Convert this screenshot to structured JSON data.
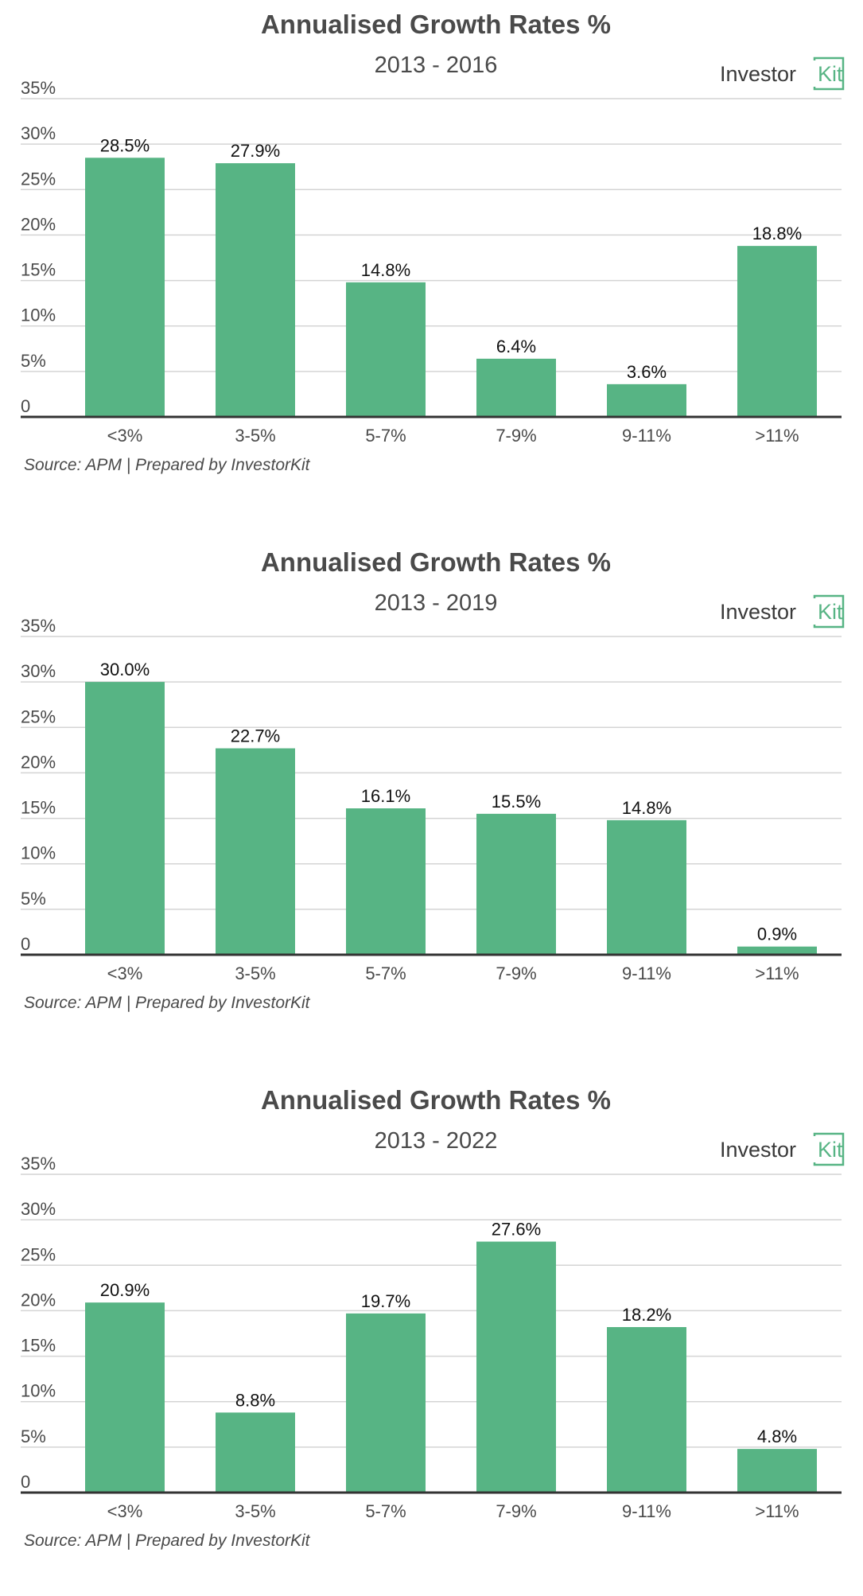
{
  "colors": {
    "bar": "#57b484",
    "logo_accent": "#57b484"
  },
  "logo": {
    "word": "Investor",
    "accent": "Kit"
  },
  "y_tick_labels": [
    "0",
    "5%",
    "10%",
    "15%",
    "20%",
    "25%",
    "30%",
    "35%"
  ],
  "chart_data": [
    {
      "type": "bar",
      "title": "Annualised Growth Rates %",
      "subtitle": "2013 - 2016",
      "source": "Source: APM | Prepared by InvestorKit",
      "categories": [
        "<3%",
        "3-5%",
        "5-7%",
        "7-9%",
        "9-11%",
        ">11%"
      ],
      "values": [
        28.5,
        27.9,
        14.8,
        6.4,
        3.6,
        18.8
      ],
      "labels": [
        "28.5%",
        "27.9%",
        "14.8%",
        "6.4%",
        "3.6%",
        "18.8%"
      ],
      "ylim": [
        0,
        35
      ],
      "grid": true
    },
    {
      "type": "bar",
      "title": "Annualised Growth Rates %",
      "subtitle": "2013 - 2019",
      "source": "Source: APM | Prepared by InvestorKit",
      "categories": [
        "<3%",
        "3-5%",
        "5-7%",
        "7-9%",
        "9-11%",
        ">11%"
      ],
      "values": [
        30.0,
        22.7,
        16.1,
        15.5,
        14.8,
        0.9
      ],
      "labels": [
        "30.0%",
        "22.7%",
        "16.1%",
        "15.5%",
        "14.8%",
        "0.9%"
      ],
      "ylim": [
        0,
        35
      ],
      "grid": true
    },
    {
      "type": "bar",
      "title": "Annualised Growth Rates %",
      "subtitle": "2013 - 2022",
      "source": "Source: APM | Prepared by InvestorKit",
      "categories": [
        "<3%",
        "3-5%",
        "5-7%",
        "7-9%",
        "9-11%",
        ">11%"
      ],
      "values": [
        20.9,
        8.8,
        19.7,
        27.6,
        18.2,
        4.8
      ],
      "labels": [
        "20.9%",
        "8.8%",
        "19.7%",
        "27.6%",
        "18.2%",
        "4.8%"
      ],
      "ylim": [
        0,
        35
      ],
      "grid": true
    }
  ]
}
